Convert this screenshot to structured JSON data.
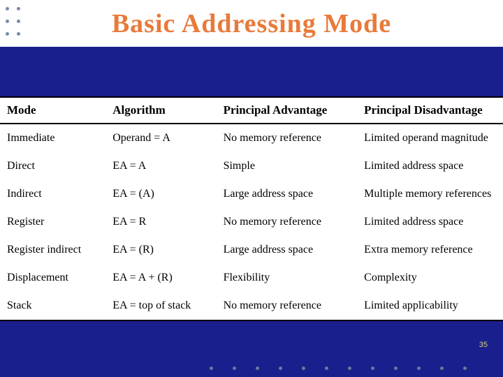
{
  "title": "Basic  Addressing  Mode",
  "page_number": "35",
  "colors": {
    "title_color": "#e87a3a",
    "background": "#1a1f8e",
    "table_bg": "#ffffff",
    "border": "#000000",
    "dot": "#7a8aa8",
    "page_num_color": "#d8d080"
  },
  "table": {
    "columns": [
      "Mode",
      "Algorithm",
      "Principal Advantage",
      "Principal Disadvantage"
    ],
    "rows": [
      [
        "Immediate",
        "Operand = A",
        "No memory reference",
        "Limited operand magnitude"
      ],
      [
        "Direct",
        "EA = A",
        "Simple",
        "Limited address space"
      ],
      [
        "Indirect",
        "EA = (A)",
        "Large address space",
        "Multiple memory references"
      ],
      [
        "Register",
        "EA = R",
        "No memory reference",
        "Limited address space"
      ],
      [
        "Register indirect",
        "EA = (R)",
        "Large address space",
        "Extra memory reference"
      ],
      [
        "Displacement",
        "EA = A + (R)",
        "Flexibility",
        "Complexity"
      ],
      [
        "Stack",
        "EA = top of stack",
        "No memory reference",
        "Limited applicability"
      ]
    ],
    "col_widths_pct": [
      21,
      22,
      28,
      29
    ],
    "header_fontsize": 17,
    "cell_fontsize": 16
  }
}
